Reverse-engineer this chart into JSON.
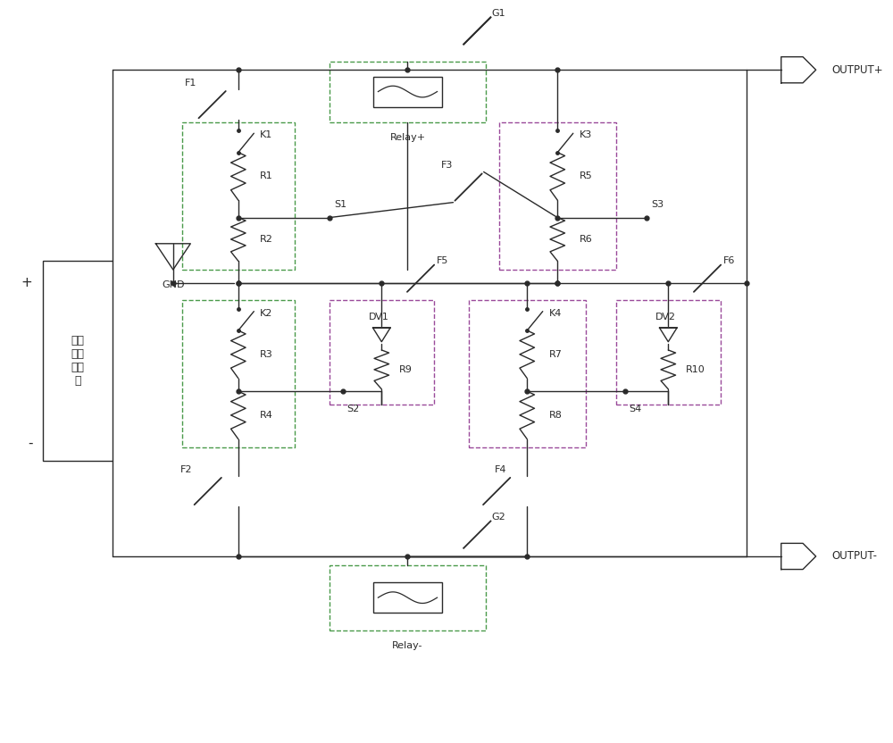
{
  "bg_color": "#ffffff",
  "line_color": "#2a2a2a",
  "dashed_box_green": "#4a9a4a",
  "dashed_box_purple": "#9a4a9a",
  "figsize": [
    10.0,
    8.32
  ],
  "dpi": 100,
  "battery_label": "待测\n动力\n电池\n组",
  "battery_plus": "+",
  "battery_minus": "-",
  "gnd_label": "GND",
  "relay_plus_label": "Relay+",
  "relay_minus_label": "Relay-",
  "g1_label": "G1",
  "g2_label": "G2",
  "output_plus_label": "OUTPUT+",
  "output_minus_label": "OUTPUT-",
  "K1": "K1",
  "K2": "K2",
  "K3": "K3",
  "K4": "K4",
  "R1": "R1",
  "R2": "R2",
  "R3": "R3",
  "R4": "R4",
  "R5": "R5",
  "R6": "R6",
  "R7": "R7",
  "R8": "R8",
  "R9": "R9",
  "R10": "R10",
  "DV1": "DV1",
  "DV2": "DV2",
  "F1": "F1",
  "F2": "F2",
  "F3": "F3",
  "F4": "F4",
  "F5": "F5",
  "F6": "F6",
  "S1": "S1",
  "S2": "S2",
  "S3": "S3",
  "S4": "S4"
}
